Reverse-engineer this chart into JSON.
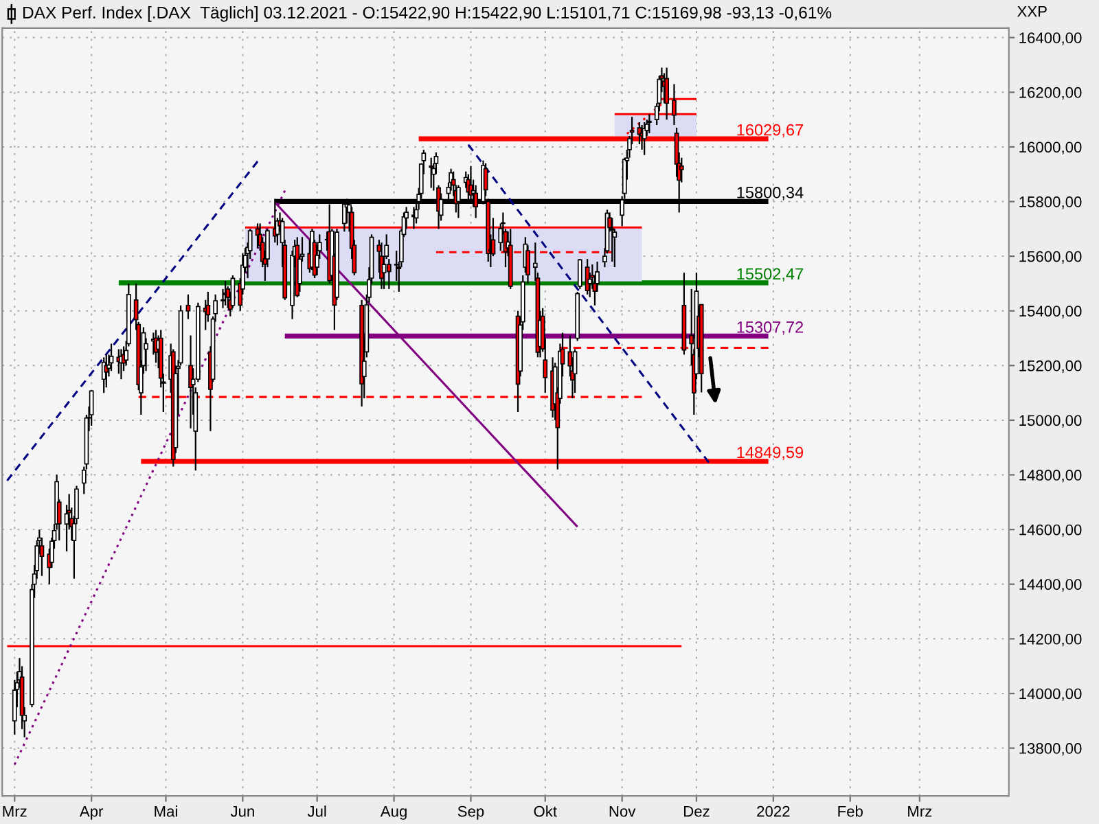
{
  "chart_data": {
    "type": "candlestick",
    "title": "DAX Perf. Index [.DAX  Täglich] 03.12.2021 - O:15422,90 H:15422,90 L:15101,71 C:15169,98 -93,13 -0,61%",
    "ylabel": "XXP",
    "xlim": [
      "2021-02-24",
      "2022-04-06"
    ],
    "xticks": [
      {
        "value": "2021-03-01",
        "label": "Mrz"
      },
      {
        "value": "2021-04-01",
        "label": "Apr"
      },
      {
        "value": "2021-05-01",
        "label": "Mai"
      },
      {
        "value": "2021-06-01",
        "label": "Jun"
      },
      {
        "value": "2021-07-01",
        "label": "Jul"
      },
      {
        "value": "2021-08-01",
        "label": "Aug"
      },
      {
        "value": "2021-09-01",
        "label": "Sep"
      },
      {
        "value": "2021-10-01",
        "label": "Okt"
      },
      {
        "value": "2021-11-01",
        "label": "Nov"
      },
      {
        "value": "2021-12-01",
        "label": "Dez"
      },
      {
        "value": "2022-01-01",
        "label": "2022"
      },
      {
        "value": "2022-02-01",
        "label": "Feb"
      },
      {
        "value": "2022-03-01",
        "label": "Mrz"
      }
    ],
    "ylim": [
      13625,
      16435
    ],
    "yticks": [
      {
        "value": 13800,
        "label": "13800,00"
      },
      {
        "value": 14000,
        "label": "14000,00"
      },
      {
        "value": 14200,
        "label": "14200,00"
      },
      {
        "value": 14400,
        "label": "14400,00"
      },
      {
        "value": 14600,
        "label": "14600,00"
      },
      {
        "value": 14800,
        "label": "14800,00"
      },
      {
        "value": 15000,
        "label": "15000,00"
      },
      {
        "value": 15200,
        "label": "15200,00"
      },
      {
        "value": 15400,
        "label": "15400,00"
      },
      {
        "value": 15600,
        "label": "15600,00"
      },
      {
        "value": 15800,
        "label": "15800,00"
      },
      {
        "value": 16000,
        "label": "16000,00"
      },
      {
        "value": 16200,
        "label": "16200,00"
      },
      {
        "value": 16400,
        "label": "16400,00"
      }
    ],
    "grid": true,
    "series": [
      {
        "type": "line",
        "color": "#ff0000",
        "x": [
          "2021-06-02",
          "2021-11-09"
        ],
        "values": [
          15705,
          15705
        ],
        "lower": [
          15508,
          15508
        ],
        "upper": [
          15705,
          15705
        ]
      },
      {
        "type": "line",
        "color": "#ff0000",
        "x": [
          "2021-10-29",
          "2021-12-01"
        ],
        "values": [
          16120,
          16120
        ],
        "lower": [
          16040,
          16040
        ],
        "upper": [
          16120,
          16120
        ]
      },
      {
        "type": "line",
        "color": "#ff0000",
        "x": [
          "2021-02-26",
          "2021-11-25"
        ],
        "values": [
          14173,
          14173
        ]
      },
      {
        "type": "line",
        "color": "#ff0000",
        "line_style": "dashed",
        "x": [
          "2021-04-20",
          "2021-11-09"
        ],
        "values": [
          15085,
          15085
        ]
      },
      {
        "type": "line",
        "color": "#ff0000",
        "line_style": "dashed",
        "x": [
          "2021-08-18",
          "2021-10-28"
        ],
        "values": [
          15615,
          15615
        ]
      },
      {
        "type": "line",
        "color": "#ff0000",
        "line_style": "dashed",
        "x": [
          "2021-10-07",
          "2021-12-30"
        ],
        "values": [
          15265,
          15265
        ]
      },
      {
        "type": "line",
        "color": "#ff0000",
        "x": [
          "2021-11-16",
          "2021-12-01"
        ],
        "values": [
          16175,
          16175
        ]
      },
      {
        "type": "line",
        "color": "#ff0000",
        "line_style": "dotted",
        "x": [
          "2021-11-03",
          "2021-11-19"
        ],
        "values": [
          16048,
          16173
        ]
      },
      {
        "type": "line",
        "color": "#000080",
        "line_style": "dashed",
        "x": [
          "2021-02-26",
          "2021-06-07"
        ],
        "values": [
          14779,
          15947
        ]
      },
      {
        "type": "line",
        "color": "#800080",
        "line_style": "dotted",
        "x": [
          "2021-03-01",
          "2021-06-18"
        ],
        "values": [
          13740,
          15840
        ]
      },
      {
        "type": "line",
        "color": "#800080",
        "x": [
          "2021-06-14",
          "2021-10-14"
        ],
        "values": [
          15797,
          14610
        ]
      },
      {
        "type": "line",
        "color": "#000080",
        "line_style": "dashed",
        "x": [
          "2021-08-31",
          "2021-12-06"
        ],
        "values": [
          16008,
          14845
        ]
      },
      {
        "type": "line",
        "name": "16029,67",
        "color": "#ff0000",
        "x": [
          "2021-08-11",
          "2021-12-30"
        ],
        "values": [
          16029.67,
          16029.67
        ]
      },
      {
        "type": "line",
        "name": "15800,34",
        "color": "#000000",
        "x": [
          "2021-06-14",
          "2021-12-30"
        ],
        "values": [
          15800.34,
          15800.34
        ]
      },
      {
        "type": "line",
        "name": "15502,47",
        "color": "#008000",
        "x": [
          "2021-04-12",
          "2021-12-30"
        ],
        "values": [
          15502.47,
          15502.47
        ]
      },
      {
        "type": "line",
        "name": "15307,72",
        "color": "#800080",
        "x": [
          "2021-06-18",
          "2021-12-30"
        ],
        "values": [
          15307.72,
          15307.72
        ]
      },
      {
        "type": "line",
        "name": "14849,59",
        "color": "#ff0000",
        "x": [
          "2021-04-21",
          "2021-12-30"
        ],
        "values": [
          14849.59,
          14849.59
        ]
      },
      {
        "x": [
          "2021-03-01",
          "2021-03-02",
          "2021-03-03",
          "2021-03-04",
          "2021-03-05",
          "2021-03-08",
          "2021-03-09",
          "2021-03-10",
          "2021-03-11",
          "2021-03-12",
          "2021-03-15",
          "2021-03-16",
          "2021-03-17",
          "2021-03-18",
          "2021-03-19",
          "2021-03-22",
          "2021-03-23",
          "2021-03-24",
          "2021-03-25",
          "2021-03-26",
          "2021-03-29",
          "2021-03-30",
          "2021-03-31",
          "2021-04-01",
          "2021-04-06",
          "2021-04-07",
          "2021-04-08",
          "2021-04-09",
          "2021-04-12",
          "2021-04-13",
          "2021-04-14",
          "2021-04-15",
          "2021-04-16",
          "2021-04-19",
          "2021-04-20",
          "2021-04-21",
          "2021-04-22",
          "2021-04-23",
          "2021-04-26",
          "2021-04-27",
          "2021-04-28",
          "2021-04-29",
          "2021-04-30",
          "2021-05-03",
          "2021-05-04",
          "2021-05-05",
          "2021-05-06",
          "2021-05-07",
          "2021-05-10",
          "2021-05-11",
          "2021-05-12",
          "2021-05-13",
          "2021-05-14",
          "2021-05-17",
          "2021-05-18",
          "2021-05-19",
          "2021-05-20",
          "2021-05-21",
          "2021-05-24",
          "2021-05-25",
          "2021-05-26",
          "2021-05-27",
          "2021-05-28",
          "2021-05-31",
          "2021-06-01",
          "2021-06-02",
          "2021-06-03",
          "2021-06-04",
          "2021-06-07",
          "2021-06-08",
          "2021-06-09",
          "2021-06-10",
          "2021-06-11",
          "2021-06-14",
          "2021-06-15",
          "2021-06-16",
          "2021-06-17",
          "2021-06-18",
          "2021-06-21",
          "2021-06-22",
          "2021-06-23",
          "2021-06-24",
          "2021-06-25",
          "2021-06-28",
          "2021-06-29",
          "2021-06-30",
          "2021-07-01",
          "2021-07-02",
          "2021-07-05",
          "2021-07-06",
          "2021-07-07",
          "2021-07-08",
          "2021-07-09",
          "2021-07-12",
          "2021-07-13",
          "2021-07-14",
          "2021-07-15",
          "2021-07-16",
          "2021-07-19",
          "2021-07-20",
          "2021-07-21",
          "2021-07-22",
          "2021-07-23",
          "2021-07-26",
          "2021-07-27",
          "2021-07-28",
          "2021-07-29",
          "2021-07-30",
          "2021-08-02",
          "2021-08-03",
          "2021-08-04",
          "2021-08-05",
          "2021-08-06",
          "2021-08-09",
          "2021-08-10",
          "2021-08-11",
          "2021-08-12",
          "2021-08-13",
          "2021-08-16",
          "2021-08-17",
          "2021-08-18",
          "2021-08-19",
          "2021-08-20",
          "2021-08-23",
          "2021-08-24",
          "2021-08-25",
          "2021-08-26",
          "2021-08-27",
          "2021-08-30",
          "2021-08-31",
          "2021-09-01",
          "2021-09-02",
          "2021-09-03",
          "2021-09-06",
          "2021-09-07",
          "2021-09-08",
          "2021-09-09",
          "2021-09-10",
          "2021-09-13",
          "2021-09-14",
          "2021-09-15",
          "2021-09-16",
          "2021-09-17",
          "2021-09-20",
          "2021-09-21",
          "2021-09-22",
          "2021-09-23",
          "2021-09-24",
          "2021-09-27",
          "2021-09-28",
          "2021-09-29",
          "2021-09-30",
          "2021-10-01",
          "2021-10-04",
          "2021-10-05",
          "2021-10-06",
          "2021-10-07",
          "2021-10-08",
          "2021-10-11",
          "2021-10-12",
          "2021-10-13",
          "2021-10-14",
          "2021-10-15",
          "2021-10-18",
          "2021-10-19",
          "2021-10-20",
          "2021-10-21",
          "2021-10-22",
          "2021-10-25",
          "2021-10-26",
          "2021-10-27",
          "2021-10-28",
          "2021-10-29",
          "2021-11-01",
          "2021-11-02",
          "2021-11-03",
          "2021-11-04",
          "2021-11-05",
          "2021-11-08",
          "2021-11-09",
          "2021-11-10",
          "2021-11-11",
          "2021-11-12",
          "2021-11-15",
          "2021-11-16",
          "2021-11-17",
          "2021-11-18",
          "2021-11-19",
          "2021-11-22",
          "2021-11-23",
          "2021-11-24",
          "2021-11-25",
          "2021-11-26",
          "2021-11-29",
          "2021-11-30",
          "2021-12-01",
          "2021-12-02",
          "2021-12-03"
        ],
        "ohlc": [
          [
            13900,
            14050,
            13850,
            14012
          ],
          [
            14015,
            14080,
            13950,
            14039
          ],
          [
            14050,
            14130,
            14020,
            14080
          ],
          [
            14060,
            14100,
            13870,
            13920
          ],
          [
            13900,
            13950,
            13840,
            13920
          ],
          [
            13960,
            14400,
            13950,
            14380
          ],
          [
            14400,
            14470,
            14350,
            14437
          ],
          [
            14450,
            14560,
            14420,
            14540
          ],
          [
            14560,
            14600,
            14510,
            14569
          ],
          [
            14540,
            14570,
            14430,
            14502
          ],
          [
            14510,
            14530,
            14400,
            14461
          ],
          [
            14480,
            14570,
            14460,
            14557
          ],
          [
            14560,
            14620,
            14530,
            14596
          ],
          [
            14620,
            14800,
            14600,
            14775
          ],
          [
            14700,
            14710,
            14560,
            14621
          ],
          [
            14620,
            14690,
            14520,
            14657
          ],
          [
            14670,
            14730,
            14600,
            14662
          ],
          [
            14640,
            14680,
            14560,
            14610
          ],
          [
            14560,
            14650,
            14420,
            14621
          ],
          [
            14640,
            14760,
            14620,
            14748
          ],
          [
            14770,
            14830,
            14730,
            14817
          ],
          [
            14840,
            15020,
            14820,
            15008
          ],
          [
            15010,
            15050,
            14960,
            15008
          ],
          [
            15020,
            15110,
            14980,
            15107
          ],
          [
            15150,
            15230,
            15100,
            15212
          ],
          [
            15200,
            15240,
            15120,
            15176
          ],
          [
            15190,
            15240,
            15160,
            15202
          ],
          [
            15210,
            15280,
            15180,
            15234
          ],
          [
            15230,
            15260,
            15170,
            15215
          ],
          [
            15210,
            15260,
            15150,
            15234
          ],
          [
            15240,
            15270,
            15180,
            15209
          ],
          [
            15220,
            15290,
            15200,
            15255
          ],
          [
            15280,
            15500,
            15270,
            15460
          ],
          [
            15440,
            15500,
            15330,
            15368
          ],
          [
            15350,
            15360,
            15110,
            15130
          ],
          [
            15100,
            15220,
            15020,
            15195
          ],
          [
            15200,
            15340,
            15170,
            15320
          ],
          [
            15260,
            15300,
            15180,
            15280
          ],
          [
            15290,
            15320,
            15240,
            15296
          ],
          [
            15300,
            15330,
            15210,
            15249
          ],
          [
            15260,
            15310,
            15190,
            15292
          ],
          [
            15300,
            15330,
            15120,
            15154
          ],
          [
            15140,
            15170,
            15030,
            15136
          ],
          [
            15150,
            15280,
            15100,
            15236
          ],
          [
            15250,
            15260,
            14830,
            14856
          ],
          [
            14900,
            15200,
            14880,
            15170
          ],
          [
            15190,
            15220,
            15020,
            15197
          ],
          [
            15210,
            15420,
            15200,
            15400
          ],
          [
            15420,
            15460,
            15370,
            15400
          ],
          [
            15200,
            15310,
            14970,
            15120
          ],
          [
            15130,
            15190,
            15020,
            15150
          ],
          [
            14960,
            15120,
            14816,
            15100
          ],
          [
            15150,
            15430,
            15140,
            15416
          ],
          [
            15410,
            15440,
            15330,
            15397
          ],
          [
            15420,
            15470,
            15360,
            15386
          ],
          [
            15250,
            15270,
            14960,
            15113
          ],
          [
            15150,
            15380,
            15140,
            15370
          ],
          [
            15390,
            15460,
            15360,
            15437
          ],
          [
            15440,
            15480,
            15410,
            15437
          ],
          [
            15460,
            15510,
            15420,
            15465
          ],
          [
            15480,
            15490,
            15410,
            15450
          ],
          [
            15440,
            15470,
            15380,
            15406
          ],
          [
            15420,
            15530,
            15410,
            15519
          ],
          [
            15500,
            15520,
            15400,
            15421
          ],
          [
            15480,
            15610,
            15460,
            15567
          ],
          [
            15560,
            15630,
            15540,
            15603
          ],
          [
            15610,
            15650,
            15520,
            15632
          ],
          [
            15620,
            15700,
            15590,
            15693
          ],
          [
            15700,
            15720,
            15630,
            15677
          ],
          [
            15680,
            15720,
            15620,
            15640
          ],
          [
            15650,
            15670,
            15560,
            15581
          ],
          [
            15590,
            15620,
            15510,
            15571
          ],
          [
            15590,
            15700,
            15560,
            15693
          ],
          [
            15700,
            15810,
            15650,
            15674
          ],
          [
            15680,
            15740,
            15640,
            15729
          ],
          [
            15730,
            15760,
            15690,
            15711
          ],
          [
            15650,
            15740,
            15560,
            15727
          ],
          [
            15640,
            15660,
            15440,
            15448
          ],
          [
            15420,
            15620,
            15370,
            15603
          ],
          [
            15600,
            15660,
            15560,
            15636
          ],
          [
            15640,
            15670,
            15450,
            15456
          ],
          [
            15500,
            15600,
            15470,
            15589
          ],
          [
            15600,
            15670,
            15580,
            15607
          ],
          [
            15610,
            15660,
            15540,
            15554
          ],
          [
            15560,
            15700,
            15550,
            15691
          ],
          [
            15650,
            15660,
            15520,
            15531
          ],
          [
            15560,
            15640,
            15530,
            15603
          ],
          [
            15620,
            15680,
            15590,
            15650
          ],
          [
            15660,
            15690,
            15620,
            15661
          ],
          [
            15690,
            15790,
            15500,
            15511
          ],
          [
            15530,
            15700,
            15510,
            15692
          ],
          [
            15600,
            15610,
            15330,
            15421
          ],
          [
            15450,
            15700,
            15440,
            15688
          ],
          [
            15720,
            15800,
            15690,
            15790
          ],
          [
            15780,
            15810,
            15720,
            15790
          ],
          [
            15760,
            15800,
            15690,
            15788
          ],
          [
            15760,
            15780,
            15590,
            15629
          ],
          [
            15640,
            15660,
            15530,
            15540
          ],
          [
            15420,
            15440,
            15050,
            15133
          ],
          [
            15160,
            15300,
            15080,
            15216
          ],
          [
            15250,
            15460,
            15230,
            15422
          ],
          [
            15450,
            15560,
            15430,
            15514
          ],
          [
            15520,
            15680,
            15500,
            15669
          ],
          [
            15640,
            15660,
            15540,
            15618
          ],
          [
            15600,
            15650,
            15480,
            15519
          ],
          [
            15540,
            15600,
            15480,
            15570
          ],
          [
            15600,
            15680,
            15590,
            15640
          ],
          [
            15570,
            15590,
            15480,
            15544
          ],
          [
            15570,
            15620,
            15510,
            15568
          ],
          [
            15560,
            15580,
            15470,
            15555
          ],
          [
            15580,
            15700,
            15560,
            15692
          ],
          [
            15680,
            15760,
            15670,
            15744
          ],
          [
            15740,
            15780,
            15700,
            15761
          ],
          [
            15750,
            15780,
            15700,
            15745
          ],
          [
            15740,
            15800,
            15720,
            15770
          ],
          [
            15800,
            15850,
            15770,
            15826
          ],
          [
            15830,
            15940,
            15810,
            15937
          ],
          [
            15950,
            15990,
            15900,
            15977
          ],
          [
            15930,
            15960,
            15850,
            15925
          ],
          [
            15900,
            15940,
            15840,
            15921
          ],
          [
            15940,
            15980,
            15900,
            15965
          ],
          [
            15850,
            15860,
            15700,
            15765
          ],
          [
            15750,
            15830,
            15730,
            15808
          ],
          [
            15830,
            15870,
            15800,
            15852
          ],
          [
            15870,
            15920,
            15840,
            15905
          ],
          [
            15880,
            15910,
            15820,
            15860
          ],
          [
            15840,
            15860,
            15760,
            15793
          ],
          [
            15800,
            15860,
            15740,
            15851
          ],
          [
            15870,
            15910,
            15850,
            15888
          ],
          [
            15880,
            15900,
            15800,
            15835
          ],
          [
            15860,
            15930,
            15800,
            15824
          ],
          [
            15830,
            15880,
            15780,
            15840
          ],
          [
            15830,
            15860,
            15740,
            15781
          ],
          [
            15800,
            15950,
            15790,
            15932
          ],
          [
            15920,
            15940,
            15820,
            15843
          ],
          [
            15800,
            15810,
            15580,
            15610
          ],
          [
            15620,
            15680,
            15560,
            15623
          ],
          [
            15660,
            15740,
            15600,
            15609
          ],
          [
            15650,
            15720,
            15620,
            15701
          ],
          [
            15720,
            15760,
            15680,
            15722
          ],
          [
            15690,
            15700,
            15560,
            15616
          ],
          [
            15630,
            15690,
            15600,
            15652
          ],
          [
            15640,
            15700,
            15480,
            15490
          ],
          [
            15380,
            15400,
            15030,
            15132
          ],
          [
            15180,
            15380,
            15160,
            15348
          ],
          [
            15360,
            15530,
            15330,
            15506
          ],
          [
            15560,
            15670,
            15540,
            15644
          ],
          [
            15620,
            15640,
            15500,
            15532
          ],
          [
            15560,
            15650,
            15510,
            15574
          ],
          [
            15520,
            15540,
            15230,
            15249
          ],
          [
            15270,
            15400,
            15230,
            15365
          ],
          [
            15380,
            15410,
            15250,
            15261
          ],
          [
            15220,
            15300,
            15100,
            15156
          ],
          [
            15180,
            15230,
            15010,
            15037
          ],
          [
            15060,
            15210,
            15000,
            15195
          ],
          [
            15100,
            15120,
            14820,
            14973
          ],
          [
            15080,
            15280,
            15060,
            15252
          ],
          [
            15260,
            15320,
            15160,
            15206
          ],
          [
            15250,
            15310,
            15160,
            15199
          ],
          [
            15180,
            15230,
            15080,
            15147
          ],
          [
            15170,
            15260,
            15100,
            15250
          ],
          [
            15300,
            15470,
            15290,
            15463
          ],
          [
            15490,
            15590,
            15480,
            15587
          ],
          [
            15560,
            15590,
            15460,
            15474
          ],
          [
            15500,
            15540,
            15450,
            15516
          ],
          [
            15530,
            15570,
            15480,
            15523
          ],
          [
            15500,
            15530,
            15420,
            15472
          ],
          [
            15500,
            15580,
            15470,
            15543
          ],
          [
            15580,
            15630,
            15560,
            15600
          ],
          [
            15620,
            15770,
            15610,
            15757
          ],
          [
            15740,
            15760,
            15690,
            15705
          ],
          [
            15700,
            15740,
            15580,
            15696
          ],
          [
            15670,
            15700,
            15560,
            15688
          ],
          [
            15750,
            15820,
            15710,
            15806
          ],
          [
            15830,
            15960,
            15810,
            15954
          ],
          [
            15950,
            15990,
            15880,
            15959
          ],
          [
            15990,
            16040,
            15960,
            16030
          ],
          [
            16060,
            16110,
            16010,
            16054
          ],
          [
            16070,
            16090,
            16010,
            16046
          ],
          [
            16050,
            16080,
            15990,
            16040
          ],
          [
            16030,
            16090,
            15970,
            16067
          ],
          [
            16060,
            16100,
            16040,
            16083
          ],
          [
            16090,
            16120,
            16050,
            16094
          ],
          [
            16100,
            16160,
            16080,
            16148
          ],
          [
            16160,
            16260,
            16130,
            16247
          ],
          [
            16260,
            16290,
            16200,
            16251
          ],
          [
            16240,
            16270,
            16160,
            16221
          ],
          [
            16250,
            16290,
            16100,
            16160
          ],
          [
            16170,
            16230,
            16080,
            16116
          ],
          [
            16050,
            16070,
            15890,
            15937
          ],
          [
            15940,
            15980,
            15760,
            15878
          ],
          [
            15930,
            15960,
            15870,
            15917
          ],
          [
            15420,
            15540,
            15240,
            15257
          ],
          [
            15310,
            15480,
            15200,
            15280
          ],
          [
            15240,
            15260,
            15020,
            15100
          ],
          [
            15170,
            15540,
            15150,
            15472
          ],
          [
            15380,
            15420,
            15230,
            15263
          ],
          [
            15422.9,
            15422.9,
            15101.71,
            15169.98
          ]
        ],
        "colors": [
          "#ffffff",
          "#ffffff",
          "#ffffff",
          "#ff0000",
          "#ffffff",
          "#ffffff",
          "#ffffff",
          "#ffffff",
          "#ffffff",
          "#ff0000",
          "#ff0000",
          "#ffffff",
          "#ffffff",
          "#ffffff",
          "#ff0000",
          "#ffffff",
          "#ff0000",
          "#ff0000",
          "#ffffff",
          "#ffffff",
          "#ffffff",
          "#ffffff",
          "#ff0000",
          "#ffffff",
          "#ffffff",
          "#ff0000",
          "#ffffff",
          "#ffffff",
          "#ff0000",
          "#ffffff",
          "#ff0000",
          "#ffffff",
          "#ffffff",
          "#ff0000",
          "#ff0000",
          "#ffffff",
          "#ffffff",
          "#ffffff",
          "#ffffff",
          "#ff0000",
          "#ffffff",
          "#ff0000",
          "#ff0000",
          "#ffffff",
          "#ff0000",
          "#ffffff",
          "#ffffff",
          "#ffffff",
          "#ff0000",
          "#ff0000",
          "#ffffff",
          "#ffffff",
          "#ffffff",
          "#ff0000",
          "#ff0000",
          "#ff0000",
          "#ffffff",
          "#ffffff",
          "#ff0000",
          "#ffffff",
          "#ff0000",
          "#ff0000",
          "#ffffff",
          "#ff0000",
          "#ffffff",
          "#ffffff",
          "#ffffff",
          "#ffffff",
          "#ff0000",
          "#ff0000",
          "#ff0000",
          "#ff0000",
          "#ffffff",
          "#ff0000",
          "#ffffff",
          "#ff0000",
          "#ffffff",
          "#ff0000",
          "#ffffff",
          "#ffffff",
          "#ff0000",
          "#ffffff",
          "#ffffff",
          "#ff0000",
          "#ffffff",
          "#ff0000",
          "#ffffff",
          "#ffffff",
          "#ffffff",
          "#ff0000",
          "#ffffff",
          "#ff0000",
          "#ffffff",
          "#ffffff",
          "#ffffff",
          "#ffffff",
          "#ff0000",
          "#ff0000",
          "#ff0000",
          "#ffffff",
          "#ffffff",
          "#ffffff",
          "#ffffff",
          "#ff0000",
          "#ff0000",
          "#ffffff",
          "#ffffff",
          "#ff0000",
          "#ff0000",
          "#ff0000",
          "#ffffff",
          "#ffffff",
          "#ffffff",
          "#ff0000",
          "#ffffff",
          "#ffffff",
          "#ffffff",
          "#ffffff",
          "#ff0000",
          "#ffffff",
          "#ffffff",
          "#ff0000",
          "#ffffff",
          "#ffffff",
          "#ffffff",
          "#ff0000",
          "#ff0000",
          "#ffffff",
          "#ffffff",
          "#ff0000",
          "#ff0000",
          "#ffffff",
          "#ff0000",
          "#ffffff",
          "#ff0000",
          "#ff0000",
          "#ffffff",
          "#ff0000",
          "#ffffff",
          "#ffffff",
          "#ff0000",
          "#ffffff",
          "#ff0000",
          "#ff0000",
          "#ffffff",
          "#ffffff",
          "#ffffff",
          "#ff0000",
          "#ffffff",
          "#ff0000",
          "#ffffff",
          "#ff0000",
          "#ff0000",
          "#ff0000",
          "#ffffff",
          "#ff0000",
          "#ffffff",
          "#ff0000",
          "#ff0000",
          "#ff0000",
          "#ffffff",
          "#ffffff",
          "#ffffff",
          "#ff0000",
          "#ffffff",
          "#ff0000",
          "#ff0000",
          "#ffffff",
          "#ffffff",
          "#ffffff",
          "#ff0000",
          "#ff0000",
          "#ffffff",
          "#ffffff",
          "#ffffff",
          "#ffffff",
          "#ffffff",
          "#ff0000",
          "#ff0000",
          "#ff0000",
          "#ffffff",
          "#ffffff",
          "#ffffff",
          "#ffffff",
          "#ffffff",
          "#ff0000",
          "#ff0000",
          "#ff0000",
          "#ff0000",
          "#ff0000",
          "#ff0000",
          "#ff0000",
          "#ff0000",
          "#ff0000",
          "#ff0000",
          "#ffffff",
          "#ff0000",
          "#ff0000"
        ]
      }
    ]
  }
}
